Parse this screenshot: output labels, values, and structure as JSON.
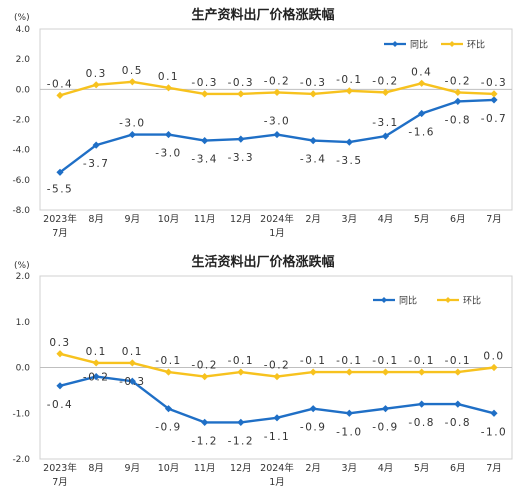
{
  "chart_data": [
    {
      "type": "line",
      "title": "生产资料出厂价格涨跌幅",
      "unit_label": "(%)",
      "categories": [
        "2023年\n7月",
        "8月",
        "9月",
        "10月",
        "11月",
        "12月",
        "2024年\n1月",
        "2月",
        "3月",
        "4月",
        "5月",
        "6月",
        "7月"
      ],
      "ylim": [
        -8.0,
        4.0
      ],
      "yticks": [
        "4.0",
        "2.0",
        "0.0",
        "-2.0",
        "-4.0",
        "-6.0",
        "-8.0"
      ],
      "ytick_values": [
        4.0,
        2.0,
        0.0,
        -2.0,
        -4.0,
        -6.0,
        -8.0
      ],
      "grid": false,
      "legend_position": "top-right",
      "series": [
        {
          "name": "同比",
          "color": "#1f6fc6",
          "values": [
            -5.5,
            -3.7,
            -3.0,
            -3.0,
            -3.4,
            -3.3,
            -3.0,
            -3.4,
            -3.5,
            -3.1,
            -1.6,
            -0.8,
            -0.7
          ],
          "labels": [
            "-5.5",
            "-3.7",
            "-3.0",
            "-3.0",
            "-3.4",
            "-3.3",
            "-3.0",
            "-3.4",
            "-3.5",
            "-3.1",
            "-1.6",
            "-0.8",
            "-0.7"
          ]
        },
        {
          "name": "环比",
          "color": "#f7c21e",
          "values": [
            -0.4,
            0.3,
            0.5,
            0.1,
            -0.3,
            -0.3,
            -0.2,
            -0.3,
            -0.1,
            -0.2,
            0.4,
            -0.2,
            -0.3
          ],
          "labels": [
            "-0.4",
            "0.3",
            "0.5",
            "0.1",
            "-0.3",
            "-0.3",
            "-0.2",
            "-0.3",
            "-0.1",
            "-0.2",
            "0.4",
            "-0.2",
            "-0.3"
          ]
        }
      ]
    },
    {
      "type": "line",
      "title": "生活资料出厂价格涨跌幅",
      "unit_label": "(%)",
      "categories": [
        "2023年\n7月",
        "8月",
        "9月",
        "10月",
        "11月",
        "12月",
        "2024年\n1月",
        "2月",
        "3月",
        "4月",
        "5月",
        "6月",
        "7月"
      ],
      "ylim": [
        -2.0,
        2.0
      ],
      "yticks": [
        "2.0",
        "1.0",
        "0.0",
        "-1.0",
        "-2.0"
      ],
      "ytick_values": [
        2.0,
        1.0,
        0.0,
        -1.0,
        -2.0
      ],
      "grid": false,
      "legend_position": "top-right",
      "series": [
        {
          "name": "同比",
          "color": "#1f6fc6",
          "values": [
            -0.4,
            -0.2,
            -0.3,
            -0.9,
            -1.2,
            -1.2,
            -1.1,
            -0.9,
            -1.0,
            -0.9,
            -0.8,
            -0.8,
            -1.0
          ],
          "labels": [
            "-0.4",
            "-0.2",
            "-0.3",
            "-0.9",
            "-1.2",
            "-1.2",
            "-1.1",
            "-0.9",
            "-1.0",
            "-0.9",
            "-0.8",
            "-0.8",
            "-1.0"
          ]
        },
        {
          "name": "环比",
          "color": "#f7c21e",
          "values": [
            0.3,
            0.1,
            0.1,
            -0.1,
            -0.2,
            -0.1,
            -0.2,
            -0.1,
            -0.1,
            -0.1,
            -0.1,
            -0.1,
            0.0
          ],
          "labels": [
            "0.3",
            "0.1",
            "0.1",
            "-0.1",
            "-0.2",
            "-0.1",
            "-0.2",
            "-0.1",
            "-0.1",
            "-0.1",
            "-0.1",
            "-0.1",
            "0.0"
          ]
        }
      ]
    }
  ]
}
